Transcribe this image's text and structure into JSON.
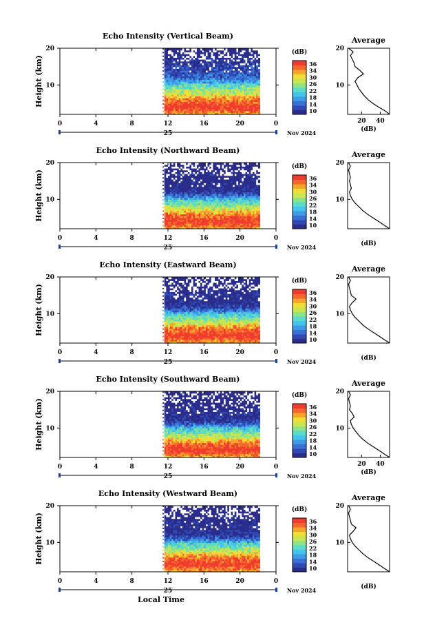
{
  "figure": {
    "xlabel": "Local Time",
    "date_label": "25",
    "month_year": "Nov 2024",
    "colorbar_title": "(dB)",
    "colorbar_ticks": [
      "36",
      "34",
      "30",
      "26",
      "22",
      "18",
      "14",
      "10"
    ],
    "avg_title": "Average",
    "avg_xlabel": "(dB)",
    "ylabel": "Height (km)"
  },
  "colors": {
    "scale": [
      "#2b2d8c",
      "#2f49b5",
      "#3a70d6",
      "#3f9be6",
      "#45c4ea",
      "#5bdcc4",
      "#8de38a",
      "#c7e652",
      "#f2dd37",
      "#f7a32c",
      "#f5672b",
      "#f03b2f"
    ],
    "missing": "#ffffff"
  },
  "chart_data": [
    {
      "type": "heatmap",
      "title": "Echo Intensity (Vertical Beam)",
      "xlabel": "",
      "ylabel": "Height (km)",
      "xlim": [
        0,
        24
      ],
      "ylim": [
        2,
        20
      ],
      "x_ticks": [
        "0",
        "4",
        "8",
        "12",
        "16",
        "20",
        "0"
      ],
      "y_ticks": [
        "20",
        "10"
      ],
      "data_start_hour": 11.6,
      "data_end_hour": 22.0,
      "profile": [
        [
          30,
          2
        ],
        [
          36,
          4
        ],
        [
          32,
          6
        ],
        [
          26,
          8
        ],
        [
          22,
          10
        ],
        [
          18,
          11
        ],
        [
          15,
          12
        ],
        [
          13,
          14
        ],
        [
          12,
          16
        ],
        [
          11,
          17
        ],
        [
          10,
          18
        ],
        [
          9,
          19
        ],
        [
          8,
          20
        ]
      ],
      "average": {
        "title": "Average",
        "xlabel": "(dB)",
        "xlim": [
          5,
          50
        ],
        "ylim": [
          2,
          20
        ],
        "x_ticks": [
          "20",
          "40"
        ],
        "y_ticks": [
          "20",
          "10"
        ],
        "points": [
          [
            50,
            2
          ],
          [
            45,
            3
          ],
          [
            38,
            4
          ],
          [
            32,
            5
          ],
          [
            27,
            6
          ],
          [
            23,
            7
          ],
          [
            20,
            8
          ],
          [
            17,
            9
          ],
          [
            15,
            10
          ],
          [
            13,
            11
          ],
          [
            16,
            12
          ],
          [
            22,
            13
          ],
          [
            18,
            14
          ],
          [
            13,
            15
          ],
          [
            12,
            16
          ],
          [
            10,
            17
          ],
          [
            8,
            18
          ],
          [
            11,
            19
          ],
          [
            6,
            20
          ]
        ]
      }
    },
    {
      "type": "heatmap",
      "title": "Echo Intensity (Northward Beam)",
      "xlabel": "",
      "ylabel": "Height (km)",
      "xlim": [
        0,
        24
      ],
      "ylim": [
        2,
        20
      ],
      "x_ticks": [
        "0",
        "4",
        "8",
        "12",
        "16",
        "20",
        "0"
      ],
      "y_ticks": [
        "20",
        "10"
      ],
      "data_start_hour": 11.6,
      "data_end_hour": 22.0,
      "profile": [
        [
          30,
          2
        ],
        [
          36,
          4
        ],
        [
          32,
          6
        ],
        [
          25,
          8
        ],
        [
          20,
          10
        ],
        [
          15,
          11
        ],
        [
          12,
          12
        ],
        [
          10,
          14
        ],
        [
          9,
          16
        ],
        [
          10,
          17
        ],
        [
          9,
          18
        ],
        [
          9,
          19
        ],
        [
          8,
          20
        ]
      ],
      "average": {
        "title": "Average",
        "xlabel": "(dB)",
        "xlim": [
          5,
          50
        ],
        "ylim": [
          2,
          20
        ],
        "x_ticks": [],
        "y_ticks": [
          "20",
          "10"
        ],
        "points": [
          [
            50,
            2
          ],
          [
            44,
            3
          ],
          [
            38,
            4
          ],
          [
            32,
            5
          ],
          [
            26,
            6
          ],
          [
            21,
            7
          ],
          [
            17,
            8
          ],
          [
            13,
            9
          ],
          [
            10,
            10
          ],
          [
            8,
            11
          ],
          [
            7,
            12
          ],
          [
            9,
            13
          ],
          [
            8,
            14
          ],
          [
            7,
            15
          ],
          [
            8,
            16
          ],
          [
            7,
            17
          ],
          [
            6,
            18
          ],
          [
            8,
            19
          ],
          [
            6,
            20
          ]
        ]
      }
    },
    {
      "type": "heatmap",
      "title": "Echo Intensity (Eastward Beam)",
      "xlabel": "",
      "ylabel": "Height (km)",
      "xlim": [
        0,
        24
      ],
      "ylim": [
        2,
        20
      ],
      "x_ticks": [
        "0",
        "4",
        "8",
        "12",
        "16",
        "20",
        "0"
      ],
      "y_ticks": [
        "20",
        "10"
      ],
      "data_start_hour": 11.6,
      "data_end_hour": 22.0,
      "profile": [
        [
          30,
          2
        ],
        [
          36,
          4
        ],
        [
          32,
          6
        ],
        [
          25,
          8
        ],
        [
          20,
          10
        ],
        [
          15,
          11
        ],
        [
          12,
          12
        ],
        [
          10,
          14
        ],
        [
          11,
          15
        ],
        [
          10,
          16
        ],
        [
          9,
          17
        ],
        [
          9,
          18
        ],
        [
          9,
          19
        ],
        [
          8,
          20
        ]
      ],
      "average": {
        "title": "Average",
        "xlabel": "(dB)",
        "xlim": [
          5,
          50
        ],
        "ylim": [
          2,
          20
        ],
        "x_ticks": [],
        "y_ticks": [
          "20",
          "10"
        ],
        "points": [
          [
            50,
            2
          ],
          [
            44,
            3
          ],
          [
            38,
            4
          ],
          [
            32,
            5
          ],
          [
            26,
            6
          ],
          [
            21,
            7
          ],
          [
            17,
            8
          ],
          [
            13,
            9
          ],
          [
            10,
            10
          ],
          [
            8,
            11
          ],
          [
            7,
            12
          ],
          [
            10,
            13
          ],
          [
            14,
            14
          ],
          [
            9,
            15
          ],
          [
            8,
            16
          ],
          [
            7,
            17
          ],
          [
            6,
            18
          ],
          [
            8,
            19
          ],
          [
            6,
            20
          ]
        ]
      }
    },
    {
      "type": "heatmap",
      "title": "Echo Intensity (Southward Beam)",
      "xlabel": "",
      "ylabel": "Height (km)",
      "xlim": [
        0,
        24
      ],
      "ylim": [
        2,
        20
      ],
      "x_ticks": [
        "0",
        "4",
        "8",
        "12",
        "16",
        "20",
        "0"
      ],
      "y_ticks": [
        "20",
        "10"
      ],
      "data_start_hour": 11.6,
      "data_end_hour": 22.0,
      "profile": [
        [
          30,
          2
        ],
        [
          36,
          4
        ],
        [
          32,
          6
        ],
        [
          25,
          8
        ],
        [
          20,
          10
        ],
        [
          15,
          11
        ],
        [
          12,
          12
        ],
        [
          10,
          14
        ],
        [
          10,
          15
        ],
        [
          9,
          16
        ],
        [
          9,
          17
        ],
        [
          9,
          18
        ],
        [
          9,
          19
        ],
        [
          8,
          20
        ]
      ],
      "average": {
        "title": "Average",
        "xlabel": "(dB)",
        "xlim": [
          5,
          50
        ],
        "ylim": [
          2,
          20
        ],
        "x_ticks": [
          "20",
          "40"
        ],
        "y_ticks": [
          "20",
          "10"
        ],
        "points": [
          [
            50,
            2
          ],
          [
            44,
            3
          ],
          [
            38,
            4
          ],
          [
            32,
            5
          ],
          [
            26,
            6
          ],
          [
            21,
            7
          ],
          [
            17,
            8
          ],
          [
            14,
            9
          ],
          [
            11,
            10
          ],
          [
            9,
            11
          ],
          [
            8,
            12
          ],
          [
            12,
            13
          ],
          [
            10,
            14
          ],
          [
            7,
            15
          ],
          [
            8,
            16
          ],
          [
            7,
            17
          ],
          [
            6,
            18
          ],
          [
            8,
            19
          ],
          [
            6,
            20
          ]
        ]
      }
    },
    {
      "type": "heatmap",
      "title": "Echo Intensity (Westward Beam)",
      "xlabel": "Local Time",
      "ylabel": "Height (km)",
      "xlim": [
        0,
        24
      ],
      "ylim": [
        2,
        20
      ],
      "x_ticks": [
        "0",
        "4",
        "8",
        "12",
        "16",
        "20",
        "0"
      ],
      "y_ticks": [
        "20",
        "10"
      ],
      "data_start_hour": 11.6,
      "data_end_hour": 22.0,
      "profile": [
        [
          30,
          2
        ],
        [
          36,
          4
        ],
        [
          32,
          6
        ],
        [
          25,
          8
        ],
        [
          20,
          10
        ],
        [
          15,
          11
        ],
        [
          12,
          12
        ],
        [
          10,
          14
        ],
        [
          11,
          15
        ],
        [
          10,
          16
        ],
        [
          9,
          17
        ],
        [
          9,
          18
        ],
        [
          9,
          19
        ],
        [
          8,
          20
        ]
      ],
      "average": {
        "title": "Average",
        "xlabel": "(dB)",
        "xlim": [
          5,
          50
        ],
        "ylim": [
          2,
          20
        ],
        "x_ticks": [],
        "y_ticks": [
          "20",
          "10"
        ],
        "points": [
          [
            50,
            2
          ],
          [
            44,
            3
          ],
          [
            38,
            4
          ],
          [
            32,
            5
          ],
          [
            26,
            6
          ],
          [
            21,
            7
          ],
          [
            17,
            8
          ],
          [
            13,
            9
          ],
          [
            10,
            10
          ],
          [
            8,
            11
          ],
          [
            7,
            12
          ],
          [
            11,
            13
          ],
          [
            14,
            14
          ],
          [
            9,
            15
          ],
          [
            8,
            16
          ],
          [
            7,
            17
          ],
          [
            6,
            18
          ],
          [
            8,
            19
          ],
          [
            6,
            20
          ]
        ]
      }
    }
  ]
}
